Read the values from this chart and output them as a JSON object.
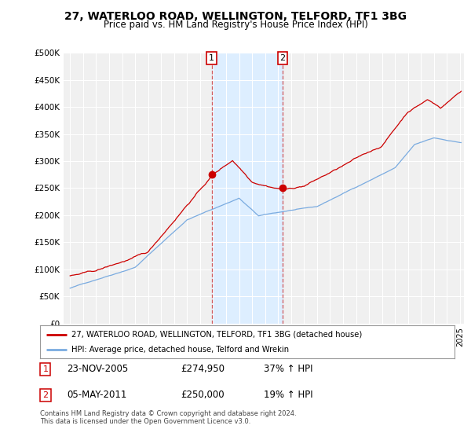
{
  "title": "27, WATERLOO ROAD, WELLINGTON, TELFORD, TF1 3BG",
  "subtitle": "Price paid vs. HM Land Registry's House Price Index (HPI)",
  "ylabel_ticks": [
    "£0",
    "£50K",
    "£100K",
    "£150K",
    "£200K",
    "£250K",
    "£300K",
    "£350K",
    "£400K",
    "£450K",
    "£500K"
  ],
  "ytick_values": [
    0,
    50000,
    100000,
    150000,
    200000,
    250000,
    300000,
    350000,
    400000,
    450000,
    500000
  ],
  "ylim": [
    0,
    500000
  ],
  "sale1_year": 2005.9,
  "sale1_price": 274950,
  "sale2_year": 2011.35,
  "sale2_price": 250000,
  "red_line_color": "#cc0000",
  "blue_line_color": "#7aabe0",
  "background_color": "#ffffff",
  "plot_bg_color": "#f0f0f0",
  "grid_color": "#ffffff",
  "shaded_region_color": "#ddeeff",
  "legend_line1": "27, WATERLOO ROAD, WELLINGTON, TELFORD, TF1 3BG (detached house)",
  "legend_line2": "HPI: Average price, detached house, Telford and Wrekin",
  "footer": "Contains HM Land Registry data © Crown copyright and database right 2024.\nThis data is licensed under the Open Government Licence v3.0."
}
